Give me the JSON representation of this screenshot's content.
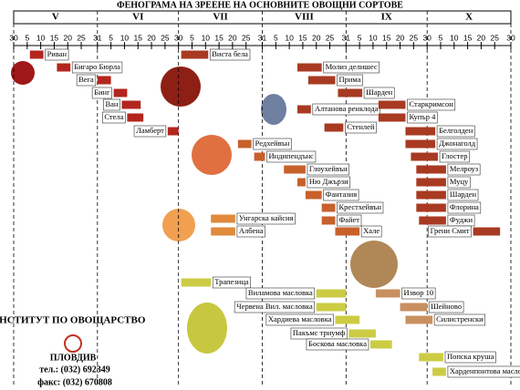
{
  "chart_data": {
    "type": "range",
    "title": "ФЕНОГРАМА НА ЗРЕЕНЕ НА ОСНОВНИТЕ ОВОЩНИ СОРТОВЕ",
    "months": [
      "V",
      "VI",
      "VII",
      "VIII",
      "IX",
      "X"
    ],
    "xlim": [
      0,
      184
    ],
    "xticks": [
      {
        "value": 0,
        "label": "30"
      },
      5,
      10,
      15,
      20,
      25,
      31,
      {
        "value": 36,
        "label": "5"
      },
      {
        "value": 41,
        "label": "10"
      },
      {
        "value": 46,
        "label": "15"
      },
      {
        "value": 51,
        "label": "20"
      },
      {
        "value": 56,
        "label": "25"
      },
      {
        "value": 61,
        "label": "30"
      },
      {
        "value": 66,
        "label": "5"
      },
      {
        "value": 71,
        "label": "10"
      },
      {
        "value": 76,
        "label": "15"
      },
      {
        "value": 81,
        "label": "20"
      },
      {
        "value": 86,
        "label": "25"
      },
      {
        "value": 92,
        "label": "31"
      },
      {
        "value": 97,
        "label": "5"
      },
      {
        "value": 102,
        "label": "10"
      },
      {
        "value": 107,
        "label": "15"
      },
      {
        "value": 112,
        "label": "20"
      },
      {
        "value": 117,
        "label": "25"
      },
      {
        "value": 123,
        "label": "31"
      },
      {
        "value": 128,
        "label": "5"
      },
      {
        "value": 133,
        "label": "10"
      },
      {
        "value": 138,
        "label": "15"
      },
      {
        "value": 143,
        "label": "20"
      },
      {
        "value": 148,
        "label": "25"
      },
      {
        "value": 153,
        "label": "30"
      },
      {
        "value": 158,
        "label": "5"
      },
      {
        "value": 163,
        "label": "10"
      },
      {
        "value": 168,
        "label": "15"
      },
      {
        "value": 173,
        "label": "20"
      },
      {
        "value": 178,
        "label": "25"
      },
      {
        "value": 184,
        "label": "30"
      }
    ],
    "categories": [
      "Риван",
      "Бигаро Бюрла",
      "Вега",
      "Бинг",
      "Ван",
      "Стела",
      "Ламберт",
      "Виста бела",
      "Молиз делишес",
      "Прима",
      "Шарден",
      "Алтанова ренклода",
      "Стенлей",
      "Старкримсон",
      "Купър 4",
      "Белголден",
      "Джонаголд",
      "Глостер",
      "Мелроуз",
      "Муцу",
      "Шарден",
      "Флорина",
      "Фуджи",
      "Грени Смит",
      "Редхейвън",
      "Индипендънс",
      "Глоухейвън",
      "Ню Джързи",
      "Фантазия",
      "Крестхейвън",
      "Файет",
      "Хале",
      "Унгарска кайсия",
      "Албена",
      "Трапезица",
      "Виламова масловка",
      "Червена Вил. масловка",
      "Хардиева масловка",
      "Пакъмс триумф",
      "Боскова масловка",
      "Извор 10",
      "Шейново",
      "Силистренски",
      "Попска круша",
      "Харденпонтова масловка"
    ],
    "ranges": [
      [
        6,
        11
      ],
      [
        16,
        21
      ],
      [
        31,
        36
      ],
      [
        37,
        42
      ],
      [
        40,
        47
      ],
      [
        42,
        48
      ],
      [
        57,
        61
      ],
      [
        62,
        72
      ],
      [
        105,
        114
      ],
      [
        109,
        119
      ],
      [
        120,
        129
      ],
      [
        105,
        110
      ],
      [
        115,
        122
      ],
      [
        135,
        145
      ],
      [
        135,
        145
      ],
      [
        145,
        156
      ],
      [
        145,
        156
      ],
      [
        147,
        157
      ],
      [
        149,
        160
      ],
      [
        149,
        160
      ],
      [
        149,
        160
      ],
      [
        149,
        160
      ],
      [
        150,
        160
      ],
      [
        170,
        180
      ],
      [
        83,
        88
      ],
      [
        89,
        93
      ],
      [
        100,
        108
      ],
      [
        105,
        108
      ],
      [
        108,
        114
      ],
      [
        114,
        119
      ],
      [
        114,
        119
      ],
      [
        119,
        128
      ],
      [
        73,
        82
      ],
      [
        73,
        82
      ],
      [
        62,
        73
      ],
      [
        112,
        123
      ],
      [
        112,
        123
      ],
      [
        119,
        128
      ],
      [
        124,
        134
      ],
      [
        132,
        140
      ],
      [
        134,
        143
      ],
      [
        143,
        153
      ],
      [
        145,
        155
      ],
      [
        150,
        159
      ],
      [
        155,
        160
      ]
    ],
    "colors": [
      "#b3261e",
      "#b3261e",
      "#b3261e",
      "#b3261e",
      "#b3261e",
      "#b3261e",
      "#b3261e",
      "#a83a22",
      "#a83a22",
      "#a83a22",
      "#a83a22",
      "#a83a22",
      "#a83a22",
      "#a83a22",
      "#a83a22",
      "#a83a22",
      "#a83a22",
      "#a83a22",
      "#a83a22",
      "#a83a22",
      "#a83a22",
      "#a83a22",
      "#a83a22",
      "#a83a22",
      "#c8602a",
      "#c8602a",
      "#c8602a",
      "#c8602a",
      "#c8602a",
      "#c8602a",
      "#c8602a",
      "#c8602a",
      "#e08a3a",
      "#e08a3a",
      "#cccc44",
      "#cccc44",
      "#cccc44",
      "#cccc44",
      "#cccc44",
      "#cccc44",
      "#c89060",
      "#c89060",
      "#c89060",
      "#cccc44",
      "#cccc44"
    ]
  },
  "institute": {
    "name": "ИНСТИТУТ ПО ОВОЩАРСТВО",
    "city": "ПЛОВДИВ",
    "phone": "тел.: (032) 692349",
    "fax": "факс: (032) 670808"
  }
}
